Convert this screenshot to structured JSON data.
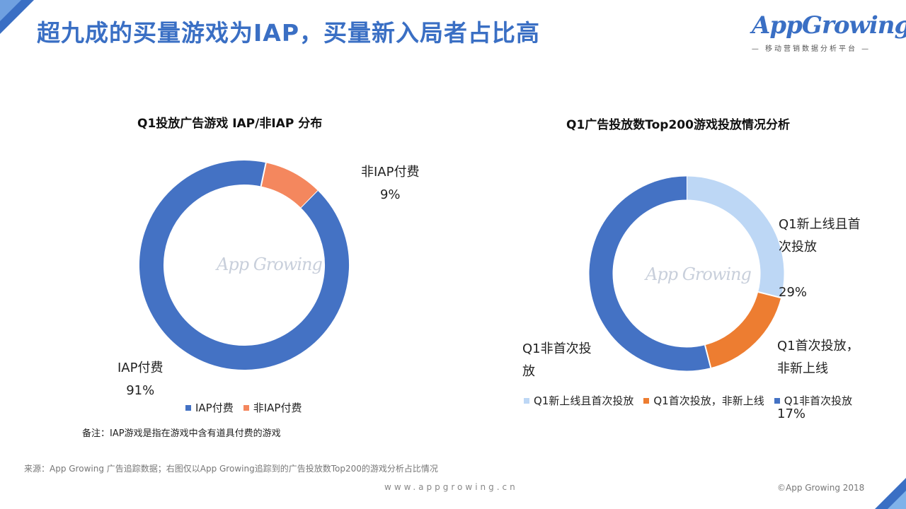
{
  "page": {
    "headline": "超九成的买量游戏为IAP，买量新入局者占比高",
    "brand": {
      "name": "AppGrowing",
      "tagline": "— 移动营销数据分析平台 —"
    },
    "watermark": "App Growing",
    "note": "备注：IAP游戏是指在游戏中含有道具付费的游戏",
    "source": "来源：App  Growing  广告追踪数据；右图仅以App   Growing追踪到的广告投放数Top200的游戏分析占比情况",
    "site": "www.appgrowing.cn",
    "copyright": "©App Growing 2018"
  },
  "chart_data": [
    {
      "type": "pie",
      "donut": true,
      "title": "Q1投放广告游戏 IAP/非IAP 分布",
      "categories": [
        "IAP付费",
        "非IAP付费"
      ],
      "values": [
        91,
        9
      ],
      "labels": [
        "91%",
        "9%"
      ],
      "colors": [
        "#4472c4",
        "#f4875e"
      ],
      "legend_position": "bottom"
    },
    {
      "type": "pie",
      "donut": true,
      "title": "Q1广告投放数Top200游戏投放情况分析",
      "categories": [
        "Q1新上线且首次投放",
        "Q1首次投放，非新上线",
        "Q1非首次投放"
      ],
      "values": [
        29,
        17,
        54
      ],
      "labels": [
        "29%",
        "17%",
        ""
      ],
      "label_texts": [
        "Q1新上线且首\n次投放",
        "Q1首次投放，\n非新上线",
        "Q1非首次投\n放"
      ],
      "colors": [
        "#bdd7f5",
        "#ed7d31",
        "#4472c4"
      ],
      "legend_position": "bottom"
    }
  ]
}
